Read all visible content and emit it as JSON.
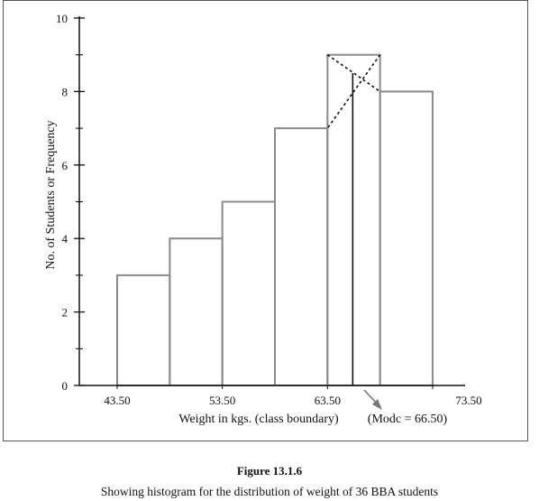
{
  "chart_data": {
    "type": "histogram",
    "title": "",
    "xlabel": "Weight in kgs. (class boundary)",
    "ylabel": "No. of Students or Frequency",
    "x_tick_labels": [
      "43.50",
      "53.50",
      "63.50",
      "73.50"
    ],
    "x_tick_values": [
      43.5,
      53.5,
      63.5,
      73.5
    ],
    "y_tick_labels": [
      "0",
      "2",
      "4",
      "6",
      "8",
      "10"
    ],
    "y_tick_values": [
      0,
      2,
      4,
      6,
      8,
      10
    ],
    "ylim": [
      0,
      10
    ],
    "bins": [
      {
        "lower": 43.5,
        "upper": 48.5,
        "frequency": 3
      },
      {
        "lower": 48.5,
        "upper": 53.5,
        "frequency": 4
      },
      {
        "lower": 53.5,
        "upper": 58.5,
        "frequency": 5
      },
      {
        "lower": 58.5,
        "upper": 63.5,
        "frequency": 7
      },
      {
        "lower": 63.5,
        "upper": 68.5,
        "frequency": 9
      },
      {
        "lower": 68.5,
        "upper": 73.5,
        "frequency": 8
      }
    ],
    "mode": {
      "value": 66.5,
      "label": "(Modc = 66.50)"
    }
  },
  "caption": {
    "label": "Figure 13.1.6",
    "text": "Showing histogram for the distribution of weight of 36 BBA students"
  }
}
